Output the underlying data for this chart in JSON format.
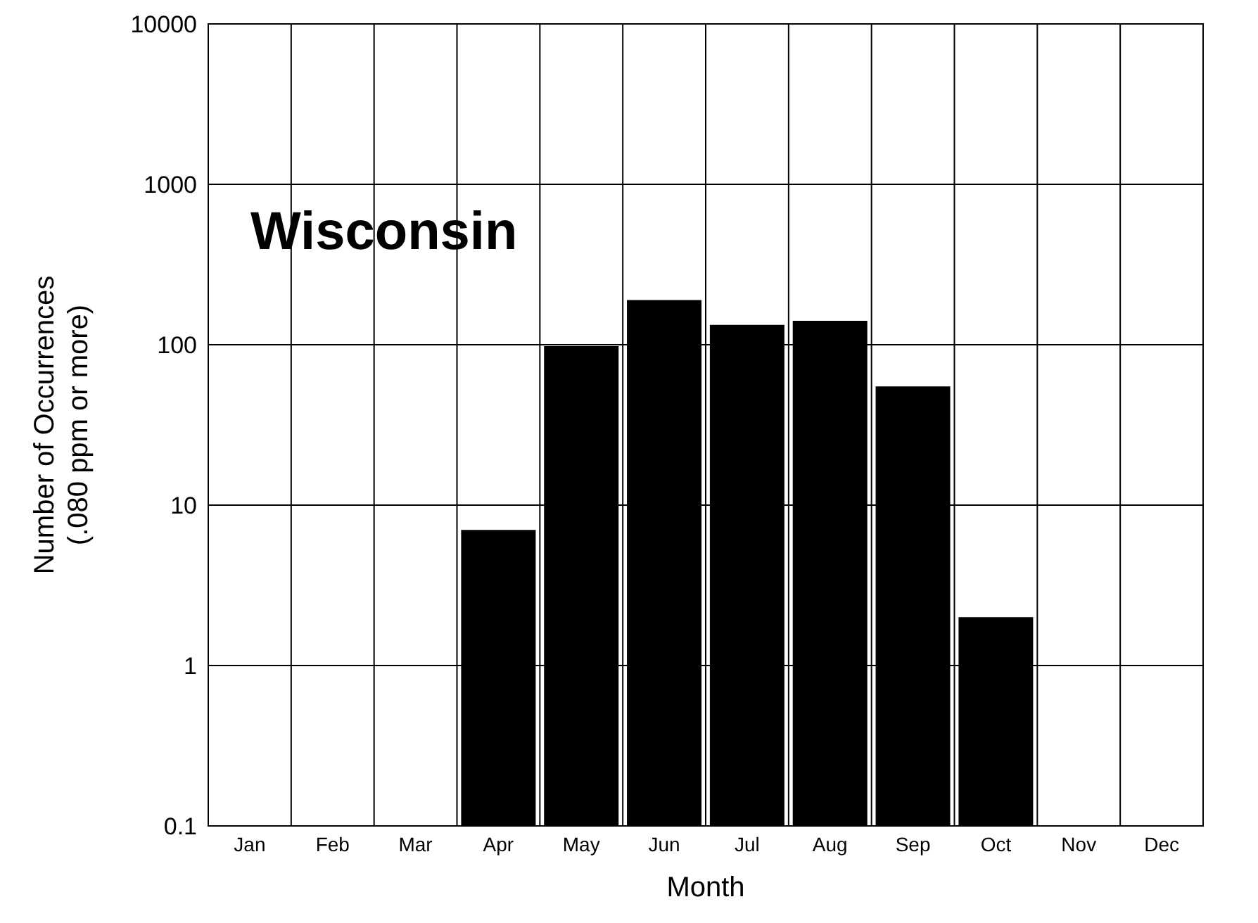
{
  "chart_data": {
    "type": "bar",
    "title": "Wisconsin",
    "xlabel": "Month",
    "ylabel": "Number of Occurrences\n(.080 ppm or more)",
    "categories": [
      "Jan",
      "Feb",
      "Mar",
      "Apr",
      "May",
      "Jun",
      "Jul",
      "Aug",
      "Sep",
      "Oct",
      "Nov",
      "Dec"
    ],
    "values": [
      null,
      null,
      null,
      7,
      98,
      190,
      133,
      141,
      55,
      2,
      null,
      null
    ],
    "color": "#000000",
    "log": true,
    "ylim": [
      0.1,
      10000
    ],
    "yticks": [
      0.1,
      1,
      10,
      100,
      1000,
      10000
    ],
    "grid": true
  }
}
